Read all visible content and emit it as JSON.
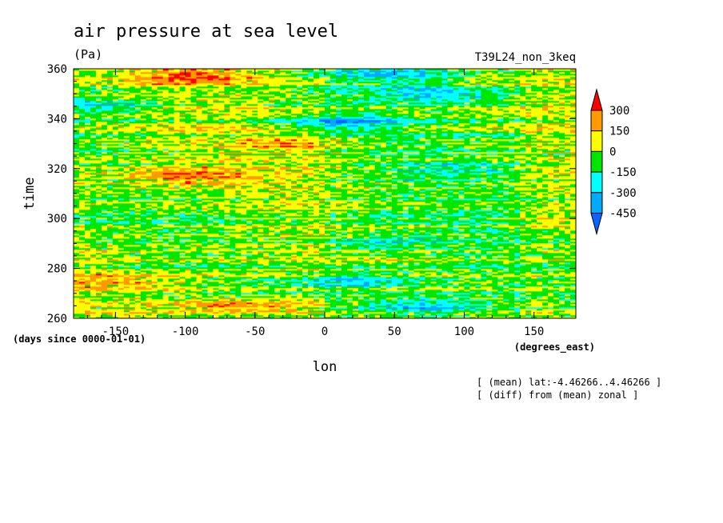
{
  "chart_data": {
    "type": "heatmap",
    "title": "air pressure at sea level",
    "units": "(Pa)",
    "run_label": "T39L24_non_3keq",
    "xlabel": "lon",
    "x_units": "(degrees_east)",
    "ylabel": "time",
    "y_units": "(days since 0000-01-01)",
    "xlim": [
      -180,
      180
    ],
    "ylim": [
      260,
      360
    ],
    "x_ticks": [
      -150,
      -100,
      -50,
      0,
      50,
      100,
      150
    ],
    "y_ticks": [
      260,
      280,
      300,
      320,
      340,
      360
    ],
    "colorbar": {
      "levels": [
        -450,
        -300,
        -150,
        0,
        150,
        300
      ],
      "colors": [
        "#0a64ff",
        "#00aaff",
        "#00ffff",
        "#00e600",
        "#ffff00",
        "#ff9900",
        "#ff0000"
      ],
      "extend": "both"
    },
    "notes": [
      "[ (mean) lat:-4.46266..4.46266 ]",
      "[ (diff) from (mean) zonal ]"
    ],
    "features": [
      {
        "lon": -160,
        "time": 345,
        "value": -200
      },
      {
        "lon": 10,
        "time": 338,
        "value": -300
      },
      {
        "lon": 50,
        "time": 358,
        "value": -250
      },
      {
        "lon": 80,
        "time": 350,
        "value": -220
      },
      {
        "lon": 70,
        "time": 265,
        "value": -350
      },
      {
        "lon": 20,
        "time": 275,
        "value": -300
      },
      {
        "lon": 40,
        "time": 290,
        "value": -180
      },
      {
        "lon": 90,
        "time": 320,
        "value": -150
      },
      {
        "lon": -95,
        "time": 357,
        "value": 260
      },
      {
        "lon": -100,
        "time": 317,
        "value": 280
      },
      {
        "lon": -150,
        "time": 275,
        "value": 200
      },
      {
        "lon": -30,
        "time": 330,
        "value": 180
      },
      {
        "lon": -60,
        "time": 265,
        "value": 220
      },
      {
        "lon": 170,
        "time": 300,
        "value": 150
      }
    ]
  }
}
